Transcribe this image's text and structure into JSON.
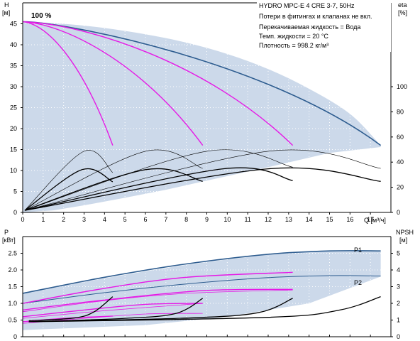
{
  "chart_data": [
    {
      "type": "line",
      "info_lines": [
        "HYDRO MPC-E 4 CRE 3-7, 50Hz",
        "Потери в фитингах и клапанах не вкл.",
        "Перекачиваемая жидкость = Вода",
        "Темп. жидкости = 20 °C",
        "Плотность = 998.2 кг/м³"
      ],
      "max_speed_label": "100 %",
      "xlabel": "Q [м³/ч]",
      "ylabel_top": "H",
      "ylabel_unit": "[м]",
      "y2label_top": "eta",
      "y2label_unit": "[%]",
      "xlim": [
        0,
        18
      ],
      "ylim": [
        0,
        50
      ],
      "y2lim": [
        0,
        166.7
      ],
      "x_ticks": [
        "0",
        "1",
        "2",
        "3",
        "4",
        "5",
        "6",
        "7",
        "8",
        "9",
        "10",
        "11",
        "12",
        "13",
        "14",
        "15",
        "16",
        "17"
      ],
      "y_ticks": [
        "0",
        "5",
        "10",
        "15",
        "20",
        "25",
        "30",
        "35",
        "40",
        "45"
      ],
      "y2_ticks": [
        "0",
        "20",
        "40",
        "60",
        "80",
        "100"
      ],
      "colors": {
        "envelope_fill": "#ccd9ea",
        "max_curve": "#2d5c8f",
        "head_curves": "#e619e6",
        "eff_curves": "#000000"
      },
      "envelope": {
        "top": [
          [
            0,
            45.5
          ],
          [
            2,
            45
          ],
          [
            4,
            44
          ],
          [
            6,
            42.5
          ],
          [
            8,
            40.5
          ],
          [
            10,
            37.8
          ],
          [
            12,
            34.2
          ],
          [
            14,
            29.5
          ],
          [
            16,
            23.5
          ],
          [
            17.5,
            16
          ]
        ],
        "bottom": [
          [
            17.5,
            15.6
          ],
          [
            15,
            14.2
          ],
          [
            12,
            10.8
          ],
          [
            9,
            7.6
          ],
          [
            7,
            5.4
          ],
          [
            5,
            3.5
          ],
          [
            3,
            1.7
          ],
          [
            1.5,
            0.5
          ],
          [
            0,
            0
          ]
        ]
      },
      "series": [
        {
          "kind": "head",
          "points": [
            [
              0,
              45.5
            ],
            [
              17.5,
              16
            ]
          ],
          "ctrl": [
            [
              2,
              45.5
            ],
            [
              12,
              36
            ]
          ]
        },
        {
          "kind": "head",
          "points": [
            [
              0,
              45.5
            ],
            [
              13.2,
              16
            ]
          ],
          "ctrl": [
            [
              3,
              45
            ],
            [
              9,
              36
            ]
          ]
        },
        {
          "kind": "head",
          "points": [
            [
              0,
              45.5
            ],
            [
              8.8,
              16
            ]
          ],
          "ctrl": [
            [
              2,
              45
            ],
            [
              5.8,
              36
            ]
          ]
        },
        {
          "kind": "head",
          "points": [
            [
              0,
              45.5
            ],
            [
              4.4,
              16
            ]
          ],
          "ctrl": [
            [
              1.2,
              45
            ],
            [
              2.9,
              36
            ]
          ]
        },
        {
          "kind": "eff",
          "points": [
            [
              0.1,
              0.5
            ],
            [
              3,
              14.6
            ],
            [
              4.4,
              9.5
            ]
          ]
        },
        {
          "kind": "eff",
          "points": [
            [
              0.1,
              0.5
            ],
            [
              6,
              14.6
            ],
            [
              8.8,
              10.5
            ]
          ]
        },
        {
          "kind": "eff",
          "points": [
            [
              0.1,
              0.5
            ],
            [
              9,
              14.6
            ],
            [
              13.2,
              10.8
            ]
          ]
        },
        {
          "kind": "eff",
          "points": [
            [
              0.1,
              0.5
            ],
            [
              12,
              14.6
            ],
            [
              17.5,
              10.5
            ]
          ]
        },
        {
          "kind": "eff",
          "points": [
            [
              0.1,
              0.5
            ],
            [
              2.9,
              10.2
            ],
            [
              4.4,
              7.3
            ]
          ]
        },
        {
          "kind": "eff",
          "points": [
            [
              0.1,
              0.5
            ],
            [
              6,
              10.2
            ],
            [
              8.8,
              7.4
            ]
          ]
        },
        {
          "kind": "eff",
          "points": [
            [
              0.1,
              0.5
            ],
            [
              9.8,
              10.4
            ],
            [
              13.2,
              7.6
            ]
          ]
        },
        {
          "kind": "eff",
          "points": [
            [
              0.1,
              0.5
            ],
            [
              12,
              10.4
            ],
            [
              17.5,
              7.4
            ]
          ]
        }
      ]
    },
    {
      "type": "line",
      "ylabel_top": "P",
      "ylabel_unit": "[кВт]",
      "y2label_top": "NPSH",
      "y2label_unit": "[м]",
      "xlim": [
        0,
        18
      ],
      "ylim": [
        0,
        3
      ],
      "y2lim": [
        0,
        6
      ],
      "y_ticks": [
        "0",
        "0.5",
        "1.0",
        "1.5",
        "2.0",
        "2.5"
      ],
      "y2_ticks": [
        "0",
        "1",
        "2",
        "3",
        "4",
        "5"
      ],
      "curve_labels": [
        "P1",
        "P2"
      ],
      "envelope": {
        "top": [
          [
            0,
            1.3
          ],
          [
            4,
            1.75
          ],
          [
            8,
            2.15
          ],
          [
            12,
            2.45
          ],
          [
            15,
            2.56
          ],
          [
            17.5,
            2.56
          ]
        ],
        "bottom": [
          [
            17.5,
            1.8
          ],
          [
            14,
            1.0
          ],
          [
            10,
            0.6
          ],
          [
            6,
            0.35
          ],
          [
            0,
            0.2
          ]
        ]
      },
      "series": [
        {
          "kind": "P1_max",
          "points": [
            [
              0,
              1.3
            ],
            [
              4,
              1.78
            ],
            [
              8,
              2.18
            ],
            [
              12,
              2.47
            ],
            [
              15,
              2.57
            ],
            [
              17.5,
              2.57
            ]
          ]
        },
        {
          "kind": "P2_max",
          "points": [
            [
              0,
              1.0
            ],
            [
              4,
              1.32
            ],
            [
              8,
              1.58
            ],
            [
              12,
              1.77
            ],
            [
              15,
              1.83
            ],
            [
              17.5,
              1.82
            ]
          ]
        },
        {
          "kind": "P1_part",
          "points": [
            [
              0,
              1.0
            ],
            [
              4,
              1.45
            ],
            [
              8,
              1.78
            ],
            [
              13.2,
              1.93
            ]
          ]
        },
        {
          "kind": "P1_part",
          "points": [
            [
              0,
              0.8
            ],
            [
              4,
              1.1
            ],
            [
              8.8,
              1.38
            ],
            [
              13.2,
              1.42
            ]
          ]
        },
        {
          "kind": "P1_part",
          "points": [
            [
              0,
              0.6
            ],
            [
              3,
              0.8
            ],
            [
              6,
              0.97
            ],
            [
              8.8,
              1.0
            ]
          ]
        },
        {
          "kind": "P1_part",
          "points": [
            [
              0,
              0.45
            ],
            [
              2,
              0.55
            ],
            [
              4.4,
              0.62
            ]
          ]
        },
        {
          "kind": "P2_part",
          "points": [
            [
              0,
              0.75
            ],
            [
              4,
              1.08
            ],
            [
              8,
              1.3
            ],
            [
              13.2,
              1.4
            ]
          ]
        },
        {
          "kind": "P2_part",
          "points": [
            [
              0,
              0.55
            ],
            [
              4,
              0.78
            ],
            [
              8.8,
              1.0
            ]
          ]
        },
        {
          "kind": "P2_part",
          "points": [
            [
              0,
              0.4
            ],
            [
              3,
              0.55
            ],
            [
              6,
              0.68
            ],
            [
              8.8,
              0.7
            ]
          ]
        },
        {
          "kind": "NPSH",
          "points": [
            [
              0.3,
              0.48
            ],
            [
              2.5,
              0.56
            ],
            [
              3.5,
              0.75
            ],
            [
              4.4,
              1.2
            ]
          ]
        },
        {
          "kind": "NPSH",
          "points": [
            [
              0.3,
              0.45
            ],
            [
              5,
              0.55
            ],
            [
              7.5,
              0.7
            ],
            [
              8.8,
              1.15
            ]
          ]
        },
        {
          "kind": "NPSH",
          "points": [
            [
              0.3,
              0.45
            ],
            [
              8,
              0.56
            ],
            [
              11.5,
              0.72
            ],
            [
              13.2,
              1.15
            ]
          ]
        },
        {
          "kind": "NPSH",
          "points": [
            [
              0.3,
              0.45
            ],
            [
              12,
              0.58
            ],
            [
              15.5,
              0.8
            ],
            [
              17.5,
              1.2
            ]
          ]
        }
      ]
    }
  ]
}
